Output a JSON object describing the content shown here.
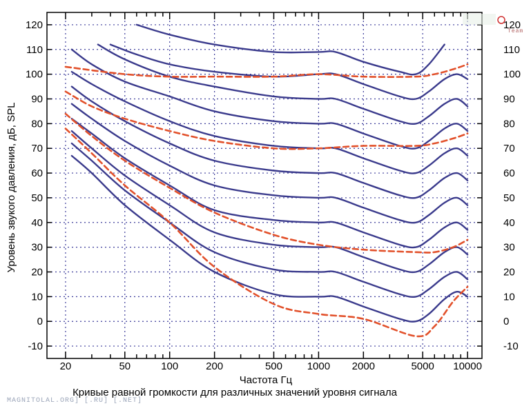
{
  "chart_data": {
    "type": "line",
    "xlabel": "Частота Гц",
    "ylabel": "Уровень звукого давления, дБ, SPL",
    "caption": "Кривые равной громкости для различных значений уровня сигнала",
    "x_scale": "log",
    "xlim": [
      15,
      12500
    ],
    "ylim": [
      -15,
      125
    ],
    "x_ticks": [
      20,
      50,
      100,
      200,
      500,
      1000,
      2000,
      5000,
      10000
    ],
    "x_tick_labels": [
      "20",
      "50",
      "100",
      "200",
      "500",
      "1000",
      "2000",
      "5000",
      "10000"
    ],
    "y_ticks": [
      -10,
      0,
      10,
      20,
      30,
      40,
      50,
      60,
      70,
      80,
      90,
      100,
      110,
      120
    ],
    "y_tick_labels": [
      "-10",
      "0",
      "10",
      "20",
      "30",
      "40",
      "50",
      "60",
      "70",
      "80",
      "90",
      "100",
      "110",
      "120"
    ],
    "y_tick_labels_right": [
      "-10",
      "0",
      "10",
      "20",
      "30",
      "40",
      "50",
      "60",
      "70",
      "80",
      "90",
      "100",
      "110",
      "120"
    ],
    "grid": true,
    "colors": {
      "solid": "#3a3a8c",
      "dashed": "#e2502a",
      "grid": "#3b3b9a",
      "axis": "#000000"
    },
    "series": [
      {
        "style": "solid",
        "points": [
          [
            60,
            120
          ],
          [
            100,
            116
          ],
          [
            200,
            112
          ],
          [
            500,
            109
          ],
          [
            1000,
            109
          ],
          [
            1300,
            109
          ],
          [
            2000,
            105
          ],
          [
            3500,
            101
          ],
          [
            4500,
            100
          ],
          [
            5500,
            104
          ],
          [
            7000,
            112
          ]
        ]
      },
      {
        "style": "solid",
        "points": [
          [
            40,
            112
          ],
          [
            60,
            108
          ],
          [
            100,
            104
          ],
          [
            200,
            101
          ],
          [
            500,
            99
          ],
          [
            1000,
            100
          ],
          [
            1300,
            100
          ],
          [
            2000,
            96
          ],
          [
            3500,
            91
          ],
          [
            4500,
            90
          ],
          [
            5500,
            93
          ],
          [
            7000,
            98
          ],
          [
            8500,
            100
          ],
          [
            10000,
            98
          ]
        ]
      },
      {
        "style": "solid",
        "points": [
          [
            33,
            112
          ],
          [
            50,
            106
          ],
          [
            100,
            99
          ],
          [
            200,
            95
          ],
          [
            500,
            91
          ],
          [
            1000,
            90
          ],
          [
            1300,
            90
          ],
          [
            2000,
            86
          ],
          [
            3500,
            81
          ],
          [
            4500,
            80
          ],
          [
            5500,
            83
          ],
          [
            7000,
            88
          ],
          [
            8500,
            90
          ],
          [
            10000,
            87
          ]
        ]
      },
      {
        "style": "solid",
        "points": [
          [
            22,
            110
          ],
          [
            30,
            104
          ],
          [
            50,
            97
          ],
          [
            100,
            91
          ],
          [
            200,
            85
          ],
          [
            500,
            81
          ],
          [
            1000,
            80
          ],
          [
            1300,
            80
          ],
          [
            2000,
            76
          ],
          [
            3500,
            71
          ],
          [
            4500,
            70
          ],
          [
            5500,
            73
          ],
          [
            7000,
            78
          ],
          [
            8500,
            80
          ],
          [
            10000,
            77
          ]
        ]
      },
      {
        "style": "solid",
        "points": [
          [
            22,
            101
          ],
          [
            30,
            96
          ],
          [
            50,
            89
          ],
          [
            100,
            81
          ],
          [
            200,
            75
          ],
          [
            500,
            71
          ],
          [
            1000,
            70
          ],
          [
            1300,
            70
          ],
          [
            2000,
            66
          ],
          [
            3500,
            61
          ],
          [
            4500,
            60
          ],
          [
            5500,
            63
          ],
          [
            7000,
            68
          ],
          [
            8500,
            70
          ],
          [
            10000,
            67
          ]
        ]
      },
      {
        "style": "solid",
        "points": [
          [
            22,
            95
          ],
          [
            30,
            89
          ],
          [
            50,
            81
          ],
          [
            100,
            72
          ],
          [
            200,
            65
          ],
          [
            500,
            61
          ],
          [
            1000,
            60
          ],
          [
            1300,
            60
          ],
          [
            2000,
            56
          ],
          [
            3500,
            51
          ],
          [
            4500,
            50
          ],
          [
            5500,
            53
          ],
          [
            7000,
            58
          ],
          [
            8500,
            60
          ],
          [
            10000,
            57
          ]
        ]
      },
      {
        "style": "solid",
        "points": [
          [
            22,
            88
          ],
          [
            30,
            82
          ],
          [
            50,
            73
          ],
          [
            100,
            63
          ],
          [
            200,
            55
          ],
          [
            500,
            51
          ],
          [
            1000,
            50
          ],
          [
            1300,
            50
          ],
          [
            2000,
            46
          ],
          [
            3500,
            41
          ],
          [
            4500,
            40
          ],
          [
            5500,
            43
          ],
          [
            7000,
            48
          ],
          [
            8500,
            50
          ],
          [
            10000,
            47
          ]
        ]
      },
      {
        "style": "solid",
        "points": [
          [
            22,
            82
          ],
          [
            30,
            76
          ],
          [
            50,
            66
          ],
          [
            100,
            55
          ],
          [
            200,
            45
          ],
          [
            500,
            41
          ],
          [
            1000,
            40
          ],
          [
            1300,
            40
          ],
          [
            2000,
            36
          ],
          [
            3500,
            31
          ],
          [
            4500,
            30
          ],
          [
            5500,
            33
          ],
          [
            7000,
            38
          ],
          [
            8500,
            40
          ],
          [
            10000,
            37
          ]
        ]
      },
      {
        "style": "solid",
        "points": [
          [
            22,
            77
          ],
          [
            30,
            70
          ],
          [
            50,
            59
          ],
          [
            100,
            47
          ],
          [
            200,
            36
          ],
          [
            500,
            31
          ],
          [
            1000,
            30
          ],
          [
            1300,
            30
          ],
          [
            2000,
            26
          ],
          [
            3500,
            21
          ],
          [
            4500,
            20
          ],
          [
            5500,
            23
          ],
          [
            7000,
            28
          ],
          [
            8500,
            30
          ],
          [
            10000,
            27
          ]
        ]
      },
      {
        "style": "solid",
        "points": [
          [
            22,
            72
          ],
          [
            30,
            65
          ],
          [
            50,
            53
          ],
          [
            100,
            40
          ],
          [
            200,
            28
          ],
          [
            500,
            21
          ],
          [
            1000,
            20
          ],
          [
            1300,
            20
          ],
          [
            2000,
            16
          ],
          [
            3500,
            11
          ],
          [
            4500,
            10
          ],
          [
            5500,
            13
          ],
          [
            7000,
            18
          ],
          [
            8500,
            20
          ],
          [
            10000,
            17
          ]
        ]
      },
      {
        "style": "solid",
        "points": [
          [
            22,
            67
          ],
          [
            30,
            60
          ],
          [
            50,
            47
          ],
          [
            100,
            33
          ],
          [
            200,
            20
          ],
          [
            500,
            11
          ],
          [
            1000,
            10
          ],
          [
            1300,
            10
          ],
          [
            2000,
            6
          ],
          [
            3500,
            1
          ],
          [
            4500,
            0
          ],
          [
            5500,
            3
          ],
          [
            7000,
            9
          ],
          [
            8500,
            12
          ],
          [
            10000,
            10
          ]
        ]
      },
      {
        "style": "dashed",
        "points": [
          [
            20,
            103
          ],
          [
            50,
            100
          ],
          [
            100,
            99
          ],
          [
            200,
            99
          ],
          [
            500,
            99
          ],
          [
            1000,
            100
          ],
          [
            2000,
            99
          ],
          [
            4500,
            99
          ],
          [
            6000,
            100
          ],
          [
            8000,
            102
          ],
          [
            10000,
            104
          ]
        ]
      },
      {
        "style": "dashed",
        "points": [
          [
            20,
            93
          ],
          [
            30,
            87
          ],
          [
            50,
            82
          ],
          [
            100,
            77
          ],
          [
            200,
            73
          ],
          [
            500,
            70
          ],
          [
            1000,
            70
          ],
          [
            2000,
            71
          ],
          [
            4500,
            71
          ],
          [
            6000,
            72
          ],
          [
            8000,
            74
          ],
          [
            10000,
            76
          ]
        ]
      },
      {
        "style": "dashed",
        "points": [
          [
            20,
            84
          ],
          [
            30,
            75
          ],
          [
            50,
            65
          ],
          [
            100,
            54
          ],
          [
            200,
            44
          ],
          [
            500,
            35
          ],
          [
            1000,
            31
          ],
          [
            2000,
            29
          ],
          [
            4500,
            28
          ],
          [
            6000,
            28
          ],
          [
            8000,
            30
          ],
          [
            10000,
            33
          ]
        ]
      },
      {
        "style": "dashed",
        "points": [
          [
            20,
            78
          ],
          [
            30,
            68
          ],
          [
            50,
            55
          ],
          [
            100,
            40
          ],
          [
            200,
            22
          ],
          [
            500,
            7
          ],
          [
            1000,
            3
          ],
          [
            2000,
            1
          ],
          [
            4500,
            -6
          ],
          [
            6000,
            -2
          ],
          [
            8000,
            8
          ],
          [
            10000,
            14
          ]
        ]
      }
    ]
  },
  "watermark": {
    "bottom_left": "MAGNITOLAL.ORG] [.RU] [.NET]",
    "top_right_text": "Team"
  }
}
